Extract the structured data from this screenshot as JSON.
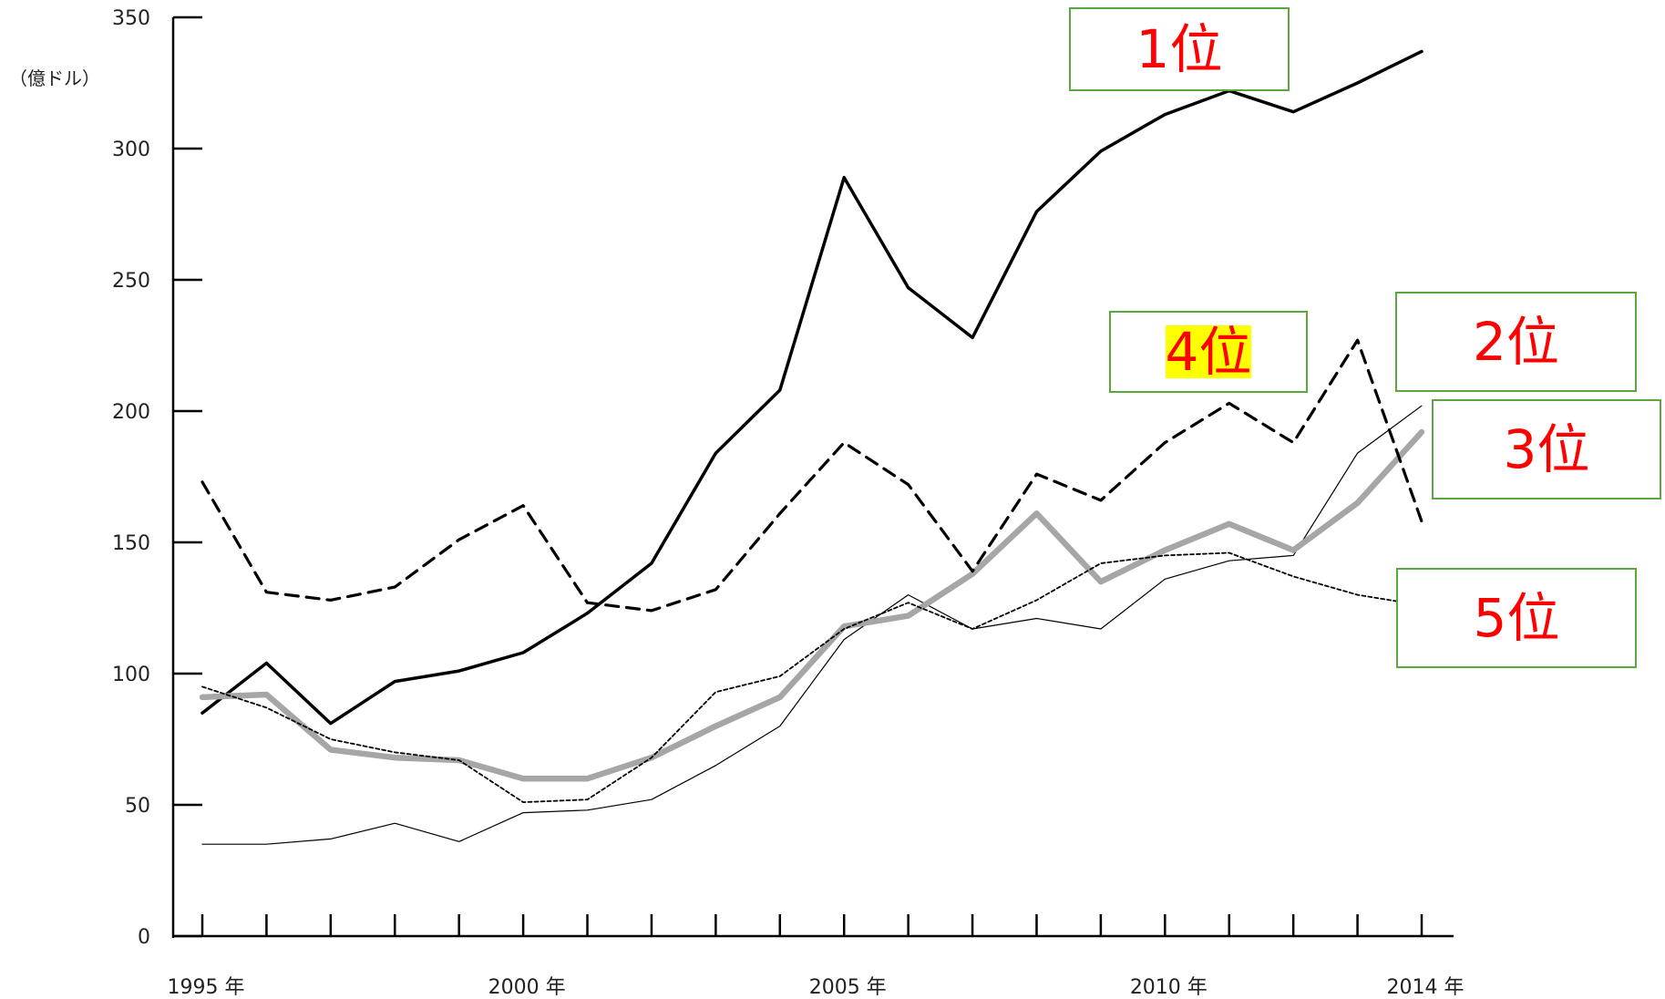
{
  "chart_data": {
    "type": "line",
    "title": "",
    "xlabel": "",
    "ylabel": "（億ドル）",
    "ylim": [
      0,
      350
    ],
    "y_ticks": [
      "0",
      "50",
      "100",
      "150",
      "200",
      "250",
      "300",
      "350"
    ],
    "x": [
      1995,
      1996,
      1997,
      1998,
      1999,
      2000,
      2001,
      2002,
      2003,
      2004,
      2005,
      2006,
      2007,
      2008,
      2009,
      2010,
      2011,
      2012,
      2013,
      2014
    ],
    "x_tick_labels": [
      {
        "year": 1995,
        "label": "1995 年"
      },
      {
        "year": 2000,
        "label": "2000 年"
      },
      {
        "year": 2005,
        "label": "2005 年"
      },
      {
        "year": 2010,
        "label": "2010 年"
      },
      {
        "year": 2014,
        "label": "2014 年"
      }
    ],
    "grid": false,
    "series": [
      {
        "rank": "1位",
        "style": "solid-thick",
        "color": "#000000",
        "values": [
          85,
          104,
          81,
          97,
          101,
          108,
          123,
          142,
          184,
          208,
          289,
          247,
          228,
          276,
          299,
          313,
          322,
          314,
          325,
          337
        ]
      },
      {
        "rank": "2位",
        "style": "thin",
        "color": "#000000",
        "values": [
          35,
          35,
          37,
          43,
          36,
          47,
          48,
          52,
          65,
          80,
          113,
          130,
          117,
          121,
          117,
          136,
          143,
          145,
          184,
          202
        ]
      },
      {
        "rank": "3位",
        "style": "gray-thick",
        "color": "#a6a6a6",
        "values": [
          91,
          92,
          71,
          68,
          67,
          60,
          60,
          68,
          80,
          91,
          118,
          122,
          138,
          161,
          135,
          147,
          157,
          147,
          165,
          192
        ]
      },
      {
        "rank": "4位",
        "style": "dashed",
        "color": "#000000",
        "values": [
          173,
          131,
          128,
          133,
          151,
          164,
          127,
          124,
          132,
          161,
          188,
          172,
          139,
          176,
          166,
          188,
          203,
          188,
          227,
          158
        ]
      },
      {
        "rank": "5位",
        "style": "dotted",
        "color": "#000000",
        "values": [
          95,
          87,
          75,
          70,
          67,
          51,
          52,
          68,
          93,
          99,
          117,
          127,
          117,
          128,
          142,
          145,
          146,
          137,
          130,
          126
        ]
      }
    ],
    "rank_labels": [
      {
        "text": "1位",
        "highlight": false
      },
      {
        "text": "4位",
        "highlight": true,
        "highlight_color": "#ffff00"
      },
      {
        "text": "2位",
        "highlight": false
      },
      {
        "text": "3位",
        "highlight": false
      },
      {
        "text": "5位",
        "highlight": false
      }
    ],
    "colors": {
      "rank_text": "#ff0000",
      "box_border": "#58a83e",
      "gray_series": "#a6a6a6"
    }
  }
}
